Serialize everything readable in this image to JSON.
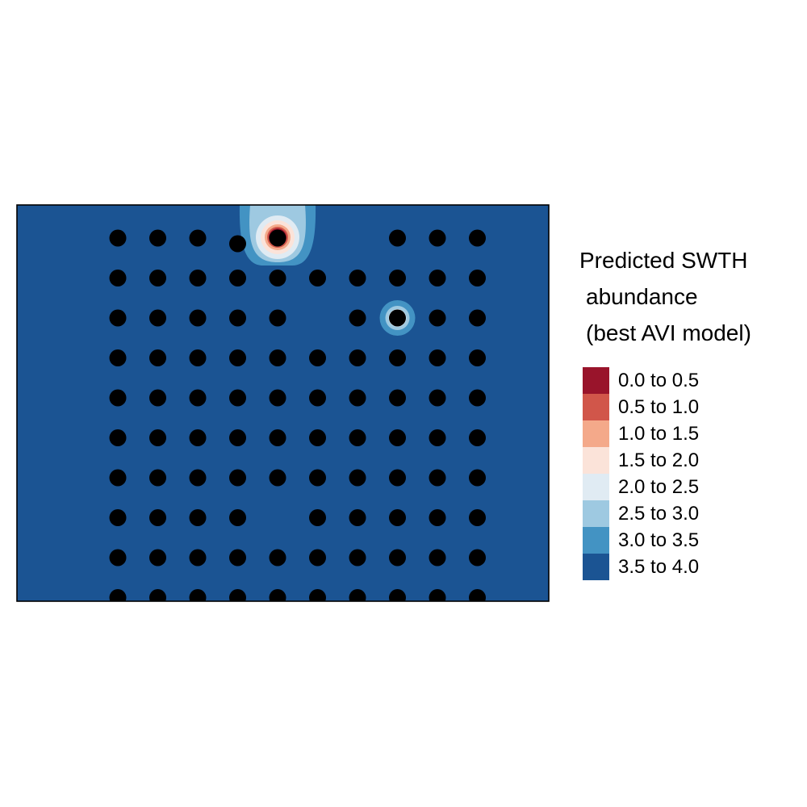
{
  "chart_data": {
    "type": "heatmap",
    "title": "",
    "legend": {
      "title_lines": [
        "Predicted SWTH",
        "abundance",
        "(best AVI model)"
      ],
      "placement": "right",
      "classes": [
        {
          "label": "0.0 to 0.5",
          "color": "#99142b"
        },
        {
          "label": "0.5 to 1.0",
          "color": "#d1564a"
        },
        {
          "label": "1.0 to 1.5",
          "color": "#f4a98a"
        },
        {
          "label": "1.5 to 2.0",
          "color": "#fbe3d9"
        },
        {
          "label": "2.0 to 2.5",
          "color": "#e0ebf3"
        },
        {
          "label": "2.5 to 3.0",
          "color": "#9ec9e1"
        },
        {
          "label": "3.0 to 3.5",
          "color": "#4393c3"
        },
        {
          "label": "3.5 to 4.0",
          "color": "#1b5493"
        }
      ]
    },
    "background_class": "3.5 to 4.0",
    "point_grid": {
      "cols": 10,
      "rows": 10,
      "missing": [
        [
          1,
          6
        ],
        [
          1,
          7
        ],
        [
          3,
          6
        ],
        [
          8,
          5
        ]
      ],
      "point_color": "#000000"
    },
    "anomalies": [
      {
        "col": 5,
        "row": 1,
        "min_class": "0.0 to 0.5"
      },
      {
        "col": 8,
        "row": 3,
        "min_class": "2.0 to 2.5"
      }
    ]
  }
}
